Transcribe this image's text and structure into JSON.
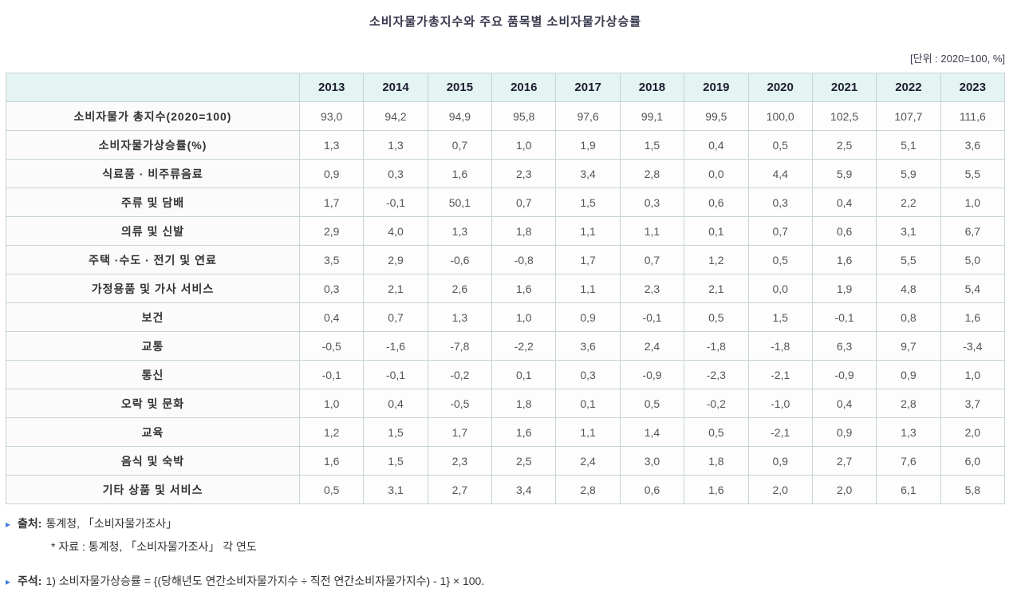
{
  "title": "소비자물가총지수와 주요 품목별 소비자물가상승률",
  "unit_label": "[단위 : 2020=100, %]",
  "table": {
    "corner_header": "",
    "year_headers": [
      "2013",
      "2014",
      "2015",
      "2016",
      "2017",
      "2018",
      "2019",
      "2020",
      "2021",
      "2022",
      "2023"
    ],
    "rows": [
      {
        "label": "소비자물가 총지수(2020=100)",
        "values": [
          "93,0",
          "94,2",
          "94,9",
          "95,8",
          "97,6",
          "99,1",
          "99,5",
          "100,0",
          "102,5",
          "107,7",
          "111,6"
        ]
      },
      {
        "label": "소비자물가상승률(%)",
        "values": [
          "1,3",
          "1,3",
          "0,7",
          "1,0",
          "1,9",
          "1,5",
          "0,4",
          "0,5",
          "2,5",
          "5,1",
          "3,6"
        ]
      },
      {
        "label": "식료품 · 비주류음료",
        "values": [
          "0,9",
          "0,3",
          "1,6",
          "2,3",
          "3,4",
          "2,8",
          "0,0",
          "4,4",
          "5,9",
          "5,9",
          "5,5"
        ]
      },
      {
        "label": "주류 및 담배",
        "values": [
          "1,7",
          "-0,1",
          "50,1",
          "0,7",
          "1,5",
          "0,3",
          "0,6",
          "0,3",
          "0,4",
          "2,2",
          "1,0"
        ]
      },
      {
        "label": "의류 및 신발",
        "values": [
          "2,9",
          "4,0",
          "1,3",
          "1,8",
          "1,1",
          "1,1",
          "0,1",
          "0,7",
          "0,6",
          "3,1",
          "6,7"
        ]
      },
      {
        "label": "주택 ·수도 · 전기 및 연료",
        "values": [
          "3,5",
          "2,9",
          "-0,6",
          "-0,8",
          "1,7",
          "0,7",
          "1,2",
          "0,5",
          "1,6",
          "5,5",
          "5,0"
        ]
      },
      {
        "label": "가정용품 및 가사 서비스",
        "values": [
          "0,3",
          "2,1",
          "2,6",
          "1,6",
          "1,1",
          "2,3",
          "2,1",
          "0,0",
          "1,9",
          "4,8",
          "5,4"
        ]
      },
      {
        "label": "보건",
        "values": [
          "0,4",
          "0,7",
          "1,3",
          "1,0",
          "0,9",
          "-0,1",
          "0,5",
          "1,5",
          "-0,1",
          "0,8",
          "1,6"
        ]
      },
      {
        "label": "교통",
        "values": [
          "-0,5",
          "-1,6",
          "-7,8",
          "-2,2",
          "3,6",
          "2,4",
          "-1,8",
          "-1,8",
          "6,3",
          "9,7",
          "-3,4"
        ]
      },
      {
        "label": "통신",
        "values": [
          "-0,1",
          "-0,1",
          "-0,2",
          "0,1",
          "0,3",
          "-0,9",
          "-2,3",
          "-2,1",
          "-0,9",
          "0,9",
          "1,0"
        ]
      },
      {
        "label": "오락 및 문화",
        "values": [
          "1,0",
          "0,4",
          "-0,5",
          "1,8",
          "0,1",
          "0,5",
          "-0,2",
          "-1,0",
          "0,4",
          "2,8",
          "3,7"
        ]
      },
      {
        "label": "교육",
        "values": [
          "1,2",
          "1,5",
          "1,7",
          "1,6",
          "1,1",
          "1,4",
          "0,5",
          "-2,1",
          "0,9",
          "1,3",
          "2,0"
        ]
      },
      {
        "label": "음식 및 숙박",
        "values": [
          "1,6",
          "1,5",
          "2,3",
          "2,5",
          "2,4",
          "3,0",
          "1,8",
          "0,9",
          "2,7",
          "7,6",
          "6,0"
        ]
      },
      {
        "label": "기타 상품 및 서비스",
        "values": [
          "0,5",
          "3,1",
          "2,7",
          "3,4",
          "2,8",
          "0,6",
          "1,6",
          "2,0",
          "2,0",
          "6,1",
          "5,8"
        ]
      }
    ]
  },
  "footnotes": {
    "bullet": "▸",
    "source_label": "출처:",
    "source_text": "통계청, 「소비자물가조사」",
    "source_sub": "* 자료 : 통계청, 「소비자물가조사」 각 연도",
    "note_label": "주석:",
    "note_text": "1) 소비자물가상승률 = {(당해년도 연간소비자물가지수 ÷ 직전 연간소비자물가지수) - 1} × 100."
  },
  "colors": {
    "header_bg": "#e3f4f2",
    "cell_border": "#c6d4d3",
    "outer_border": "#9fb6b4",
    "bullet_blue": "#3c7ce0",
    "value_text": "#555555",
    "label_text": "#333333"
  }
}
